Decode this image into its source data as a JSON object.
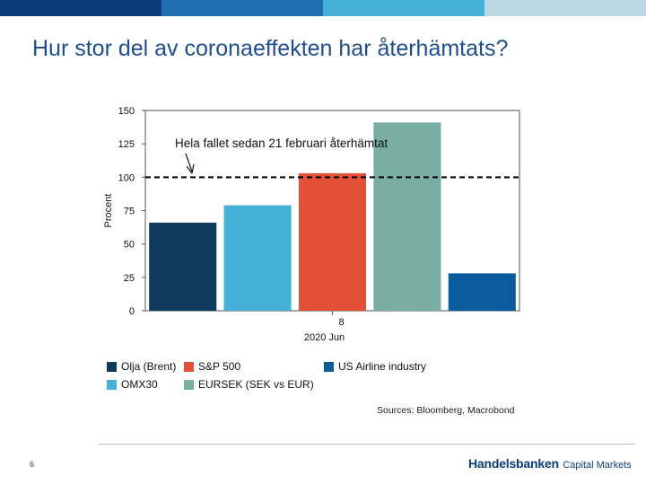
{
  "top_bar_colors": [
    "#0b3d7a",
    "#1f6fb2",
    "#45b0d8",
    "#b9d9e6"
  ],
  "slide": {
    "title": "Hur stor del av coronaeffekten har återhämtats?",
    "page_number": "6",
    "brand_name": "Handelsbanken",
    "brand_suffix": "Capital Markets",
    "sources": "Sources: Bloomberg, Macrobond"
  },
  "chart_data": {
    "type": "bar",
    "ylabel": "Procent",
    "ylim": [
      0,
      150
    ],
    "yticks": [
      0,
      25,
      50,
      75,
      100,
      125,
      150
    ],
    "x_tick_label": "8",
    "x_label": "2020 Jun",
    "reference_line": {
      "value": 100,
      "style": "dashed",
      "color": "#000000"
    },
    "annotation": "Hela fallet sedan 21 februari återhämtat",
    "series": [
      {
        "name": "Olja (Brent)",
        "value": 66,
        "color": "#0e3a5e"
      },
      {
        "name": "OMX30",
        "value": 79,
        "color": "#45b0d8"
      },
      {
        "name": "S&P 500",
        "value": 103,
        "color": "#e05138"
      },
      {
        "name": "EURSEK (SEK vs EUR)",
        "value": 141,
        "color": "#7aada4"
      },
      {
        "name": "US Airline industry",
        "value": 28,
        "color": "#0a5c9e"
      }
    ]
  }
}
